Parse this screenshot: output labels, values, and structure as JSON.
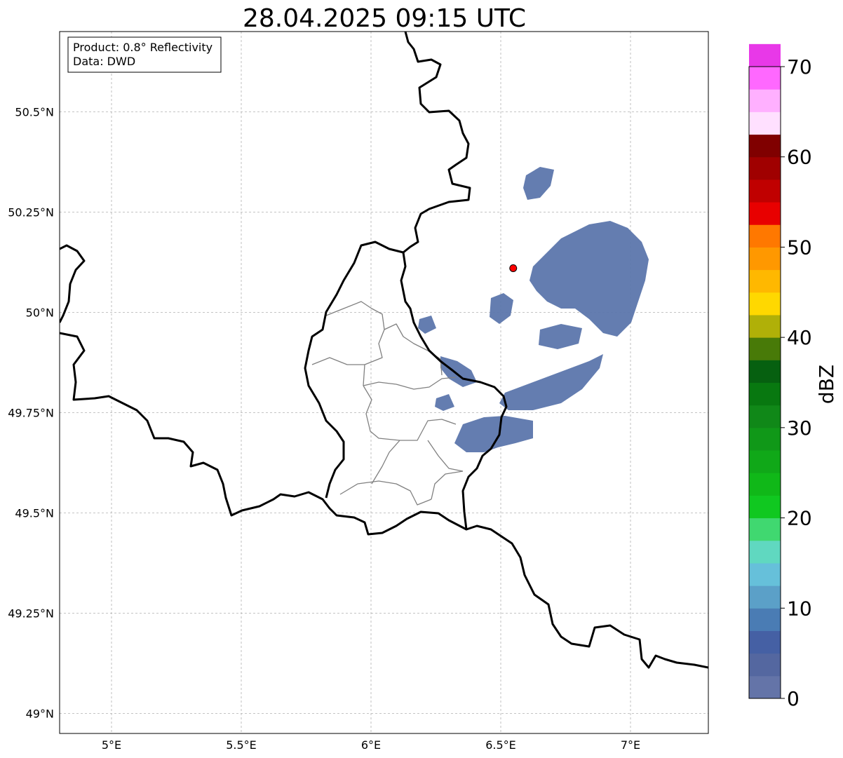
{
  "title": "28.04.2025 09:15 UTC",
  "info_box": {
    "product": "Product: 0.8° Reflectivity",
    "data": "Data: DWD"
  },
  "map": {
    "lon_range": [
      4.8,
      7.3
    ],
    "lat_range": [
      48.95,
      50.7
    ],
    "lon_ticks": [
      {
        "value": 5.0,
        "label": "5°E"
      },
      {
        "value": 5.5,
        "label": "5.5°E"
      },
      {
        "value": 6.0,
        "label": "6°E"
      },
      {
        "value": 6.5,
        "label": "6.5°E"
      },
      {
        "value": 7.0,
        "label": "7°E"
      }
    ],
    "lat_ticks": [
      {
        "value": 50.5,
        "label": "50.5°N"
      },
      {
        "value": 50.25,
        "label": "50.25°N"
      },
      {
        "value": 50.0,
        "label": "50°N"
      },
      {
        "value": 49.75,
        "label": "49.75°N"
      },
      {
        "value": 49.5,
        "label": "49.5°N"
      },
      {
        "value": 49.25,
        "label": "49.25°N"
      },
      {
        "value": 49.0,
        "label": "49°N"
      }
    ],
    "grid": true,
    "radar_site": {
      "lon": 6.548,
      "lat": 50.11,
      "color": "#ff0000"
    },
    "echo_color": "#5c76ac"
  },
  "colorbar": {
    "label": "dBZ",
    "min": 0,
    "max": 70,
    "step": 2.5,
    "ticks": [
      {
        "value": 0,
        "label": "0"
      },
      {
        "value": 10,
        "label": "10"
      },
      {
        "value": 20,
        "label": "20"
      },
      {
        "value": 30,
        "label": "30"
      },
      {
        "value": 40,
        "label": "40"
      },
      {
        "value": 50,
        "label": "50"
      },
      {
        "value": 60,
        "label": "60"
      },
      {
        "value": 70,
        "label": "70"
      }
    ],
    "colors": [
      "#6474a8",
      "#5467a0",
      "#4560a4",
      "#4a7cb4",
      "#5ba0c8",
      "#66c0da",
      "#60d8c0",
      "#40d870",
      "#10c820",
      "#10b818",
      "#10a818",
      "#109818",
      "#108818",
      "#087810",
      "#066010",
      "#487a08",
      "#b0b008",
      "#ffd800",
      "#ffb800",
      "#ff9800",
      "#ff7800",
      "#e80000",
      "#c00000",
      "#a00000",
      "#800000",
      "#ffe0ff",
      "#ffb0ff",
      "#ff68ff",
      "#e838e8"
    ]
  }
}
